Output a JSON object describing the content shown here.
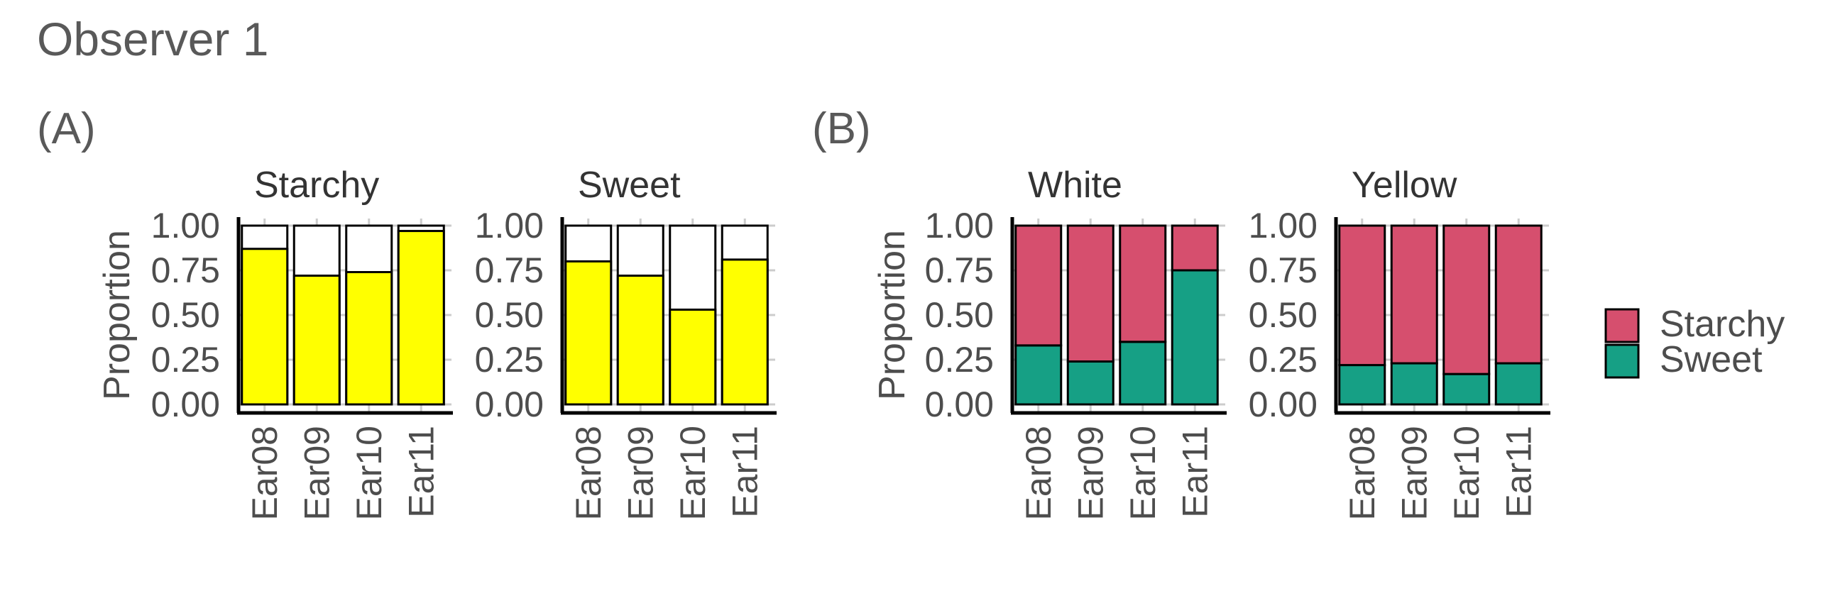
{
  "title": "Observer 1",
  "colors": {
    "yellow": "#ffff00",
    "starchy": "#d64f6e",
    "sweet": "#16a085",
    "grid": "#cccccc",
    "axis": "#000000"
  },
  "legend": {
    "items": [
      {
        "label": "Starchy",
        "color": "#d64f6e"
      },
      {
        "label": "Sweet",
        "color": "#16a085"
      }
    ]
  },
  "chart_data": [
    {
      "panel": "(A)",
      "type": "bar",
      "ylabel": "Proportion",
      "ylim": [
        0,
        1
      ],
      "yticks": [
        "0.00",
        "0.25",
        "0.50",
        "0.75",
        "1.00"
      ],
      "facets": [
        {
          "name": "Starchy",
          "categories": [
            "Ear08",
            "Ear09",
            "Ear10",
            "Ear11"
          ],
          "values": [
            0.87,
            0.72,
            0.74,
            0.97
          ],
          "fill": "yellow"
        },
        {
          "name": "Sweet",
          "categories": [
            "Ear08",
            "Ear09",
            "Ear10",
            "Ear11"
          ],
          "values": [
            0.8,
            0.72,
            0.53,
            0.81
          ],
          "fill": "yellow"
        }
      ],
      "legend": "none"
    },
    {
      "panel": "(B)",
      "type": "bar",
      "stacked": true,
      "ylabel": "Proportion",
      "ylim": [
        0,
        1
      ],
      "yticks": [
        "0.00",
        "0.25",
        "0.50",
        "0.75",
        "1.00"
      ],
      "facets": [
        {
          "name": "White",
          "categories": [
            "Ear08",
            "Ear09",
            "Ear10",
            "Ear11"
          ],
          "series": [
            {
              "name": "Sweet",
              "values": [
                0.33,
                0.24,
                0.35,
                0.75
              ]
            },
            {
              "name": "Starchy",
              "values": [
                0.67,
                0.76,
                0.65,
                0.25
              ]
            }
          ]
        },
        {
          "name": "Yellow",
          "categories": [
            "Ear08",
            "Ear09",
            "Ear10",
            "Ear11"
          ],
          "series": [
            {
              "name": "Sweet",
              "values": [
                0.22,
                0.23,
                0.17,
                0.23
              ]
            },
            {
              "name": "Starchy",
              "values": [
                0.78,
                0.77,
                0.83,
                0.77
              ]
            }
          ]
        }
      ],
      "legend": "right"
    }
  ]
}
